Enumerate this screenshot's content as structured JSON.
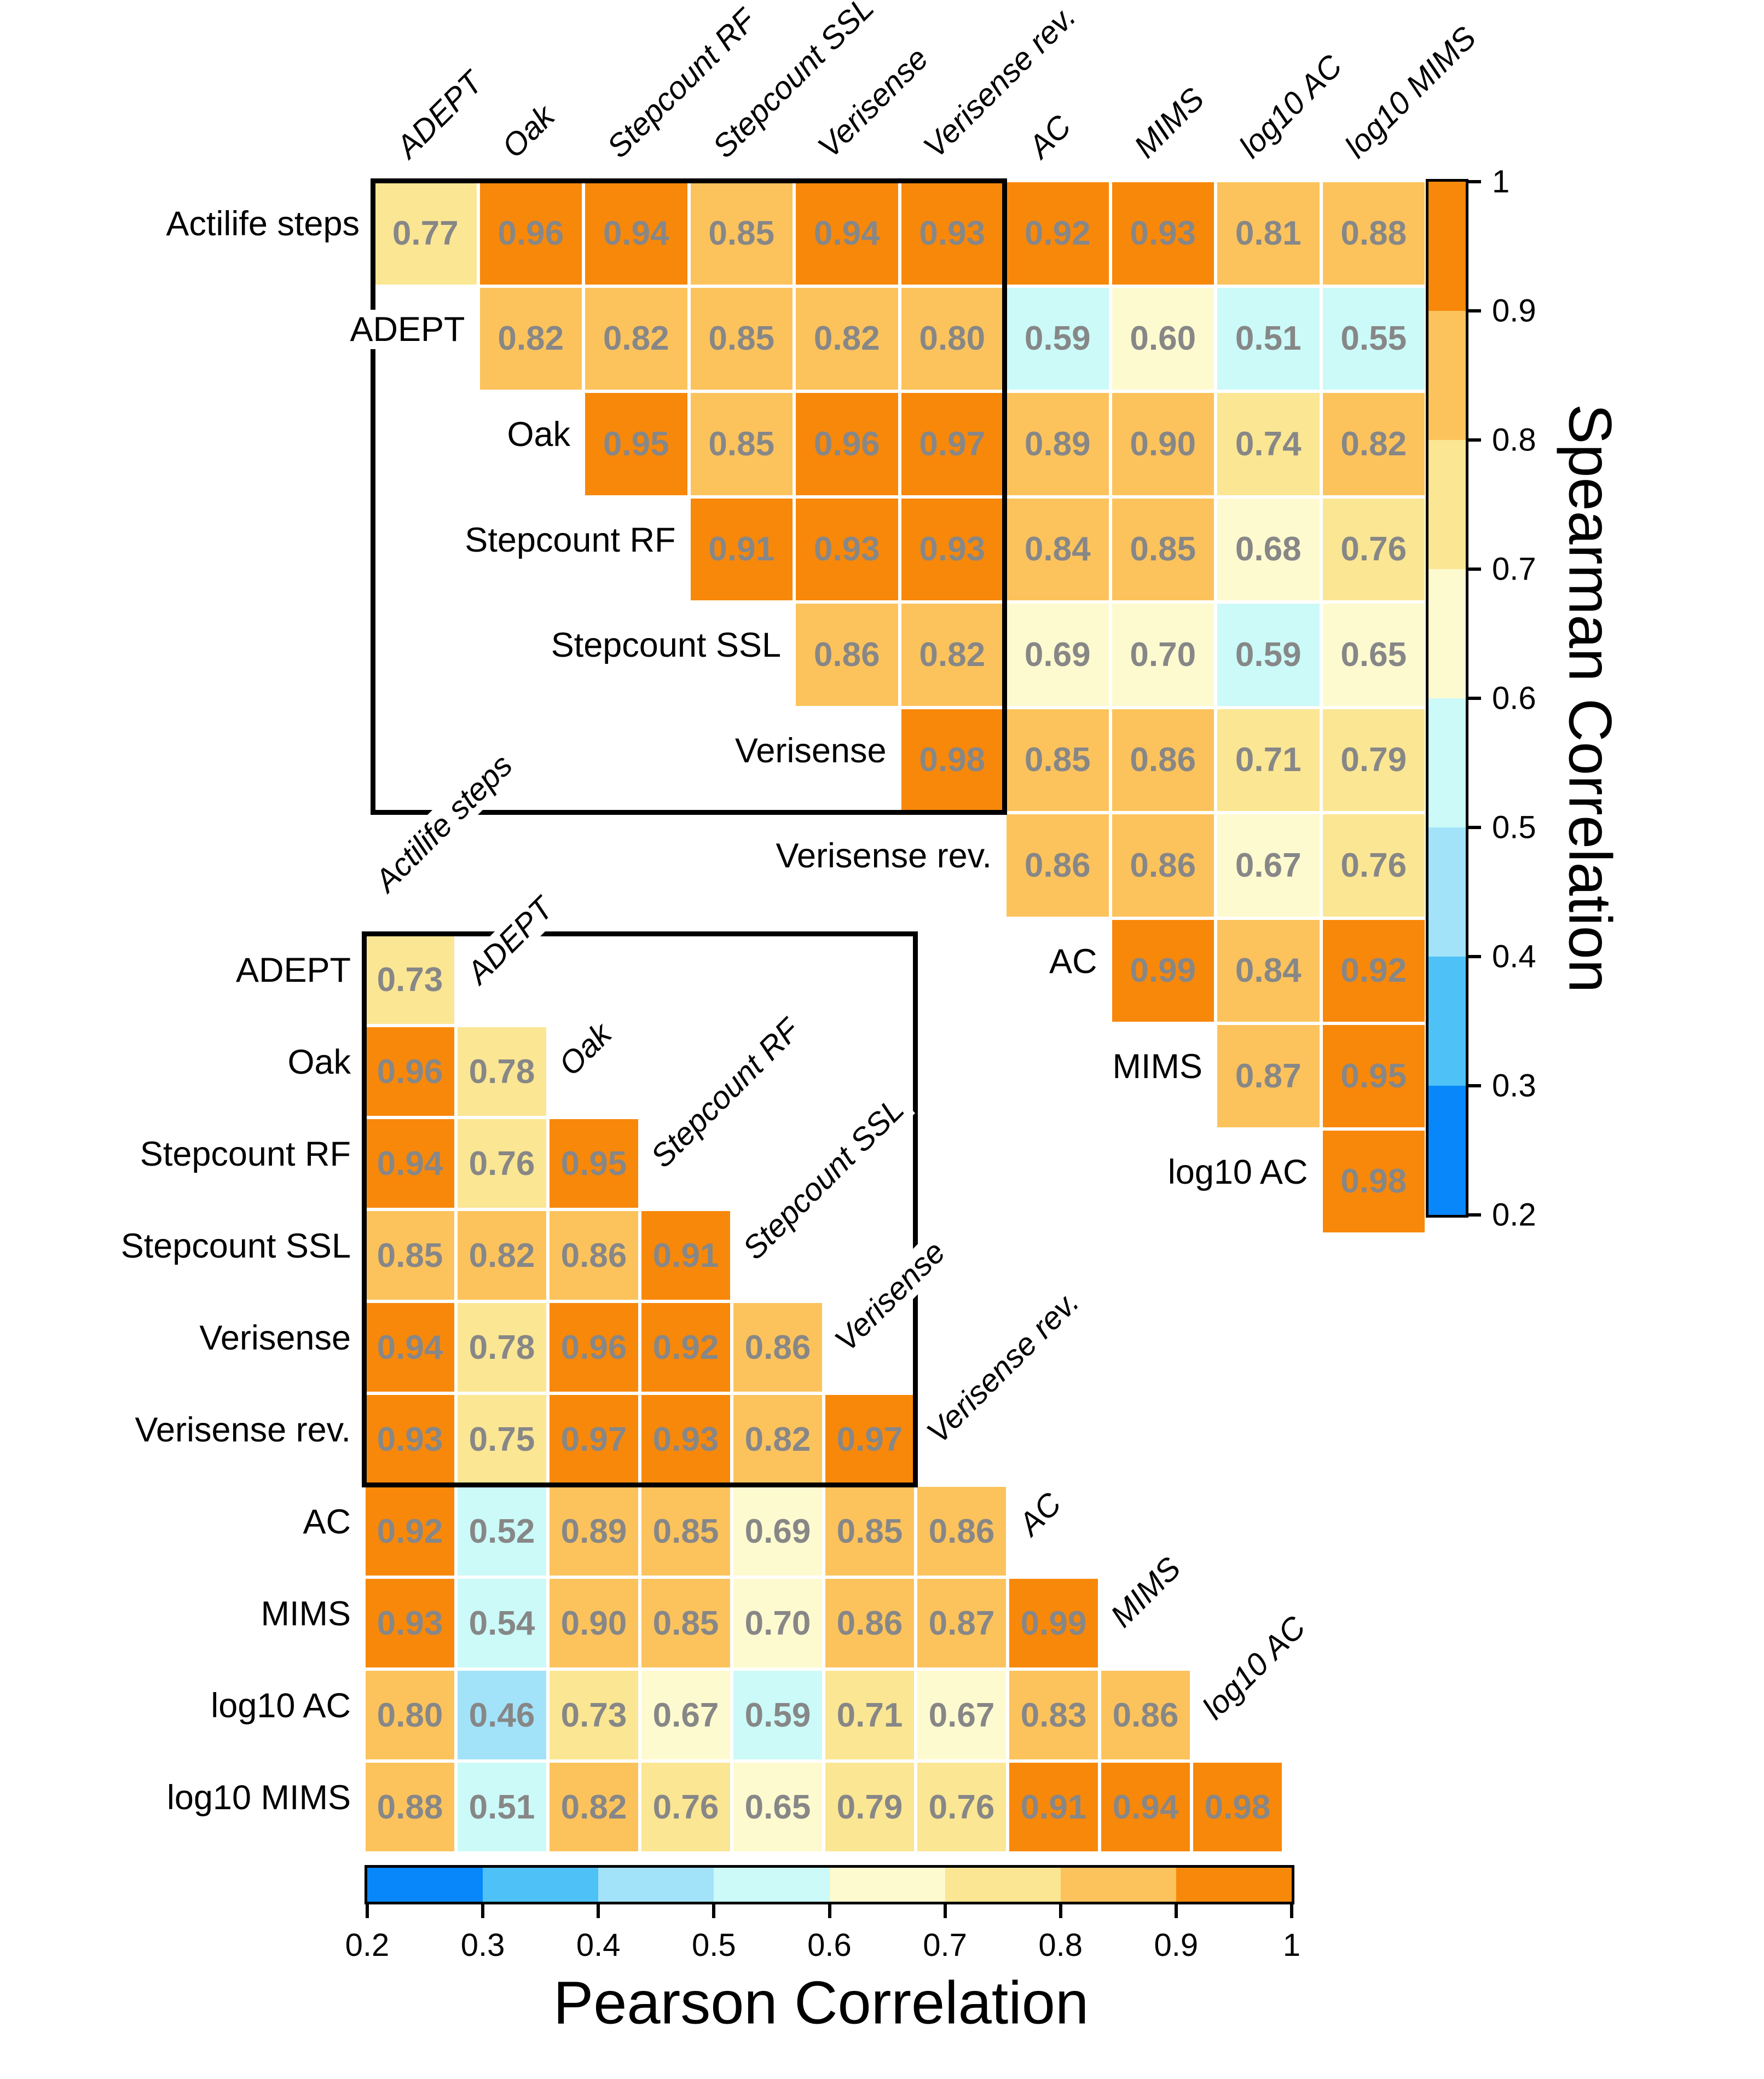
{
  "figure": {
    "background": "#ffffff",
    "value_text_color": "#878787",
    "grid_line_color": "#ffffff",
    "box_color": "#000000"
  },
  "palette": {
    "bins": [
      {
        "min": 0.2,
        "max": 0.3,
        "color": "#0887FB"
      },
      {
        "min": 0.3,
        "max": 0.4,
        "color": "#4EC2F7"
      },
      {
        "min": 0.4,
        "max": 0.5,
        "color": "#A2E3F9"
      },
      {
        "min": 0.5,
        "max": 0.6,
        "color": "#CBFAF8"
      },
      {
        "min": 0.6,
        "max": 0.7,
        "color": "#FEFAD0"
      },
      {
        "min": 0.7,
        "max": 0.8,
        "color": "#FBE693"
      },
      {
        "min": 0.8,
        "max": 0.9,
        "color": "#FCC35C"
      },
      {
        "min": 0.9,
        "max": 1.0,
        "color": "#F8880A"
      }
    ],
    "boundary_down_values": [
      "0.70",
      "0.90"
    ]
  },
  "chart_data": [
    {
      "type": "heatmap",
      "name": "spearman",
      "triangle": "upper",
      "title": "Spearman Correlation",
      "row_labels": [
        "Actilife steps",
        "ADEPT",
        "Oak",
        "Stepcount RF",
        "Stepcount SSL",
        "Verisense",
        "Verisense rev.",
        "AC",
        "MIMS",
        "log10 AC"
      ],
      "col_labels": [
        "ADEPT",
        "Oak",
        "Stepcount RF",
        "Stepcount SSL",
        "Verisense",
        "Verisense rev.",
        "AC",
        "MIMS",
        "log10 AC",
        "log10 MIMS"
      ],
      "rows": [
        [
          "0.77",
          "0.96",
          "0.94",
          "0.85",
          "0.94",
          "0.93",
          "0.92",
          "0.93",
          "0.81",
          "0.88"
        ],
        [
          "0.82",
          "0.82",
          "0.85",
          "0.82",
          "0.80",
          "0.59",
          "0.60",
          "0.51",
          "0.55"
        ],
        [
          "0.95",
          "0.85",
          "0.96",
          "0.97",
          "0.89",
          "0.90",
          "0.74",
          "0.82"
        ],
        [
          "0.91",
          "0.93",
          "0.93",
          "0.84",
          "0.85",
          "0.68",
          "0.76"
        ],
        [
          "0.86",
          "0.82",
          "0.69",
          "0.70",
          "0.59",
          "0.65"
        ],
        [
          "0.98",
          "0.85",
          "0.86",
          "0.71",
          "0.79"
        ],
        [
          "0.86",
          "0.86",
          "0.67",
          "0.76"
        ],
        [
          "0.99",
          "0.84",
          "0.92"
        ],
        [
          "0.87",
          "0.95"
        ],
        [
          "0.98"
        ]
      ],
      "highlight_box": {
        "row_start": 0,
        "row_end": 5,
        "col_start": 0,
        "col_end": 5
      },
      "legend": {
        "orientation": "vertical",
        "range": [
          0.2,
          1
        ],
        "ticks": [
          "1",
          "0.9",
          "0.8",
          "0.7",
          "0.6",
          "0.5",
          "0.4",
          "0.3",
          "0.2"
        ]
      }
    },
    {
      "type": "heatmap",
      "name": "pearson",
      "triangle": "lower",
      "title": "Pearson Correlation",
      "row_labels": [
        "ADEPT",
        "Oak",
        "Stepcount RF",
        "Stepcount SSL",
        "Verisense",
        "Verisense rev.",
        "AC",
        "MIMS",
        "log10 AC",
        "log10 MIMS"
      ],
      "col_labels": [
        "Actilife steps",
        "ADEPT",
        "Oak",
        "Stepcount RF",
        "Stepcount SSL",
        "Verisense",
        "Verisense rev.",
        "AC",
        "MIMS",
        "log10 AC"
      ],
      "rows": [
        [
          "0.73"
        ],
        [
          "0.96",
          "0.78"
        ],
        [
          "0.94",
          "0.76",
          "0.95"
        ],
        [
          "0.85",
          "0.82",
          "0.86",
          "0.91"
        ],
        [
          "0.94",
          "0.78",
          "0.96",
          "0.92",
          "0.86"
        ],
        [
          "0.93",
          "0.75",
          "0.97",
          "0.93",
          "0.82",
          "0.97"
        ],
        [
          "0.92",
          "0.52",
          "0.89",
          "0.85",
          "0.69",
          "0.85",
          "0.86"
        ],
        [
          "0.93",
          "0.54",
          "0.90",
          "0.85",
          "0.70",
          "0.86",
          "0.87",
          "0.99"
        ],
        [
          "0.80",
          "0.46",
          "0.73",
          "0.67",
          "0.59",
          "0.71",
          "0.67",
          "0.83",
          "0.86"
        ],
        [
          "0.88",
          "0.51",
          "0.82",
          "0.76",
          "0.65",
          "0.79",
          "0.76",
          "0.91",
          "0.94",
          "0.98"
        ]
      ],
      "highlight_box": {
        "row_start": 0,
        "row_end": 5,
        "col_start": 0,
        "col_end": 5
      },
      "legend": {
        "orientation": "horizontal",
        "range": [
          0.2,
          1
        ],
        "ticks": [
          "0.2",
          "0.3",
          "0.4",
          "0.5",
          "0.6",
          "0.7",
          "0.8",
          "0.9",
          "1"
        ]
      }
    }
  ]
}
